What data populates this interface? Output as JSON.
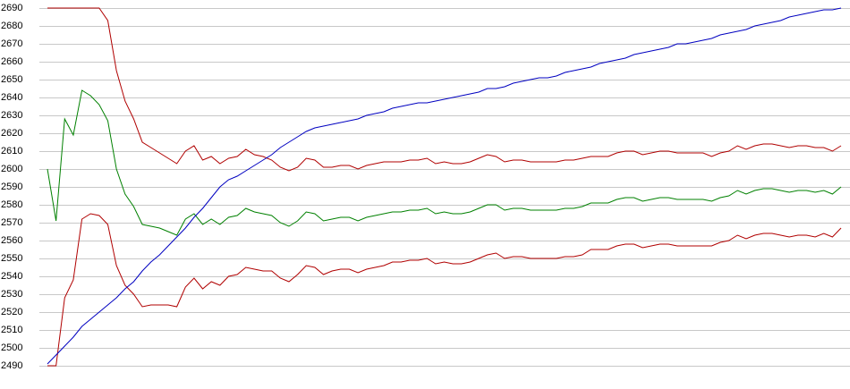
{
  "chart_data": {
    "type": "line",
    "ylim": [
      2490,
      2690
    ],
    "yticks": [
      2490,
      2500,
      2510,
      2520,
      2530,
      2540,
      2550,
      2560,
      2570,
      2580,
      2590,
      2600,
      2610,
      2620,
      2630,
      2640,
      2650,
      2660,
      2670,
      2680,
      2690
    ],
    "grid": true,
    "series": [
      {
        "color": "#b00000",
        "values": [
          2690,
          2690,
          2690,
          2690,
          2690,
          2690,
          2690,
          2683,
          2655,
          2638,
          2628,
          2615,
          2612,
          2609,
          2606,
          2603,
          2610,
          2613,
          2605,
          2607,
          2603,
          2606,
          2607,
          2611,
          2608,
          2607,
          2605,
          2601,
          2599,
          2601,
          2606,
          2605,
          2601,
          2601,
          2602,
          2602,
          2600,
          2602,
          2603,
          2604,
          2604,
          2604,
          2605,
          2605,
          2606,
          2603,
          2604,
          2603,
          2603,
          2604,
          2606,
          2608,
          2607,
          2604,
          2605,
          2605,
          2604,
          2604,
          2604,
          2604,
          2605,
          2605,
          2606,
          2607,
          2607,
          2607,
          2609,
          2610,
          2610,
          2608,
          2609,
          2610,
          2610,
          2609,
          2609,
          2609,
          2609,
          2607,
          2609,
          2610,
          2613,
          2611,
          2613,
          2614,
          2614,
          2613,
          2612,
          2613,
          2613,
          2612,
          2612,
          2610,
          2613
        ]
      },
      {
        "color": "#008000",
        "values": [
          2600,
          2571,
          2628,
          2619,
          2644,
          2641,
          2636,
          2627,
          2600,
          2586,
          2579,
          2569,
          2568,
          2567,
          2565,
          2563,
          2572,
          2575,
          2569,
          2572,
          2569,
          2573,
          2574,
          2578,
          2576,
          2575,
          2574,
          2570,
          2568,
          2571,
          2576,
          2575,
          2571,
          2572,
          2573,
          2573,
          2571,
          2573,
          2574,
          2575,
          2576,
          2576,
          2577,
          2577,
          2578,
          2575,
          2576,
          2575,
          2575,
          2576,
          2578,
          2580,
          2580,
          2577,
          2578,
          2578,
          2577,
          2577,
          2577,
          2577,
          2578,
          2578,
          2579,
          2581,
          2581,
          2581,
          2583,
          2584,
          2584,
          2582,
          2583,
          2584,
          2584,
          2583,
          2583,
          2583,
          2583,
          2582,
          2584,
          2585,
          2588,
          2586,
          2588,
          2589,
          2589,
          2588,
          2587,
          2588,
          2588,
          2587,
          2588,
          2586,
          2590
        ]
      },
      {
        "color": "#b00000",
        "values": [
          2490,
          2490,
          2528,
          2538,
          2572,
          2575,
          2574,
          2569,
          2546,
          2535,
          2530,
          2523,
          2524,
          2524,
          2524,
          2523,
          2534,
          2539,
          2533,
          2537,
          2535,
          2540,
          2541,
          2545,
          2544,
          2543,
          2543,
          2539,
          2537,
          2541,
          2546,
          2545,
          2541,
          2543,
          2544,
          2544,
          2542,
          2544,
          2545,
          2546,
          2548,
          2548,
          2549,
          2549,
          2550,
          2547,
          2548,
          2547,
          2547,
          2548,
          2550,
          2552,
          2553,
          2550,
          2551,
          2551,
          2550,
          2550,
          2550,
          2550,
          2551,
          2551,
          2552,
          2555,
          2555,
          2555,
          2557,
          2558,
          2558,
          2556,
          2557,
          2558,
          2558,
          2557,
          2557,
          2557,
          2557,
          2557,
          2559,
          2560,
          2563,
          2561,
          2563,
          2564,
          2564,
          2563,
          2562,
          2563,
          2563,
          2562,
          2564,
          2562,
          2567
        ]
      },
      {
        "color": "#0000c0",
        "values": [
          2491,
          2496,
          2501,
          2506,
          2512,
          2516,
          2520,
          2524,
          2528,
          2533,
          2537,
          2543,
          2548,
          2552,
          2557,
          2562,
          2567,
          2573,
          2578,
          2584,
          2590,
          2594,
          2596,
          2599,
          2602,
          2605,
          2608,
          2612,
          2615,
          2618,
          2621,
          2623,
          2624,
          2625,
          2626,
          2627,
          2628,
          2630,
          2631,
          2632,
          2634,
          2635,
          2636,
          2637,
          2637,
          2638,
          2639,
          2640,
          2641,
          2642,
          2643,
          2645,
          2645,
          2646,
          2648,
          2649,
          2650,
          2651,
          2651,
          2652,
          2654,
          2655,
          2656,
          2657,
          2659,
          2660,
          2661,
          2662,
          2664,
          2665,
          2666,
          2667,
          2668,
          2670,
          2670,
          2671,
          2672,
          2673,
          2675,
          2676,
          2677,
          2678,
          2680,
          2681,
          2682,
          2683,
          2685,
          2686,
          2687,
          2688,
          2689,
          2689,
          2690
        ]
      }
    ]
  }
}
